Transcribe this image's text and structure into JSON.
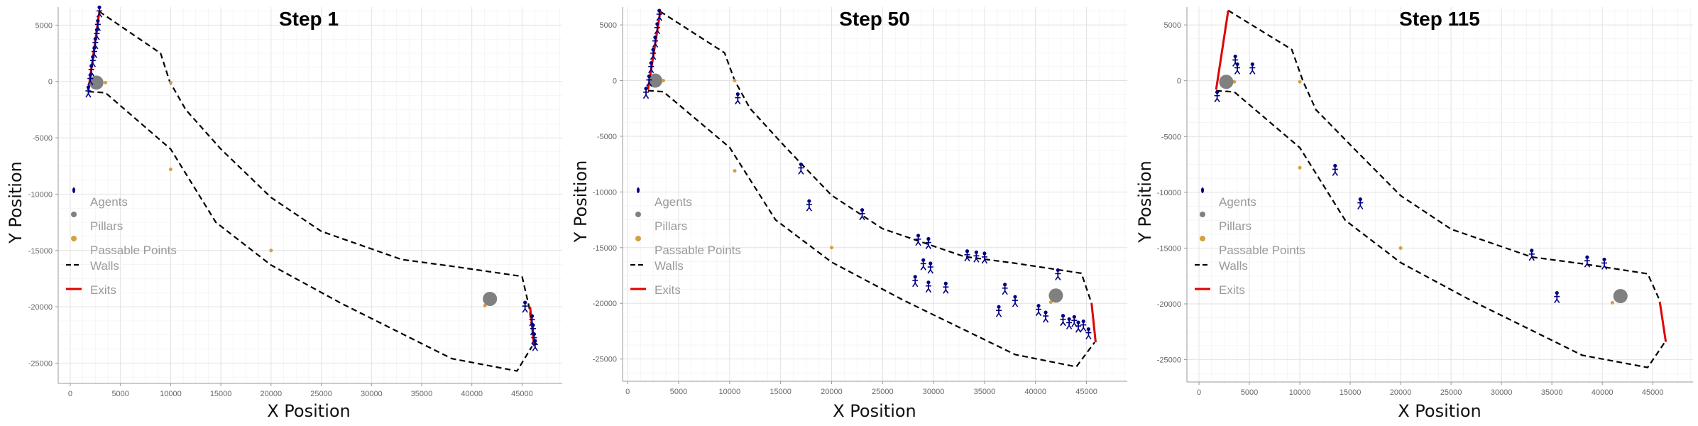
{
  "chart_data": [
    {
      "type": "scatter",
      "title": "Step 1",
      "xlabel": "X Position",
      "ylabel": "Y Position",
      "xlim": [
        -1200,
        49000
      ],
      "ylim": [
        -26800,
        6600
      ],
      "xticks": [
        0,
        5000,
        10000,
        15000,
        20000,
        25000,
        30000,
        35000,
        40000,
        45000
      ],
      "yticks": [
        5000,
        0,
        -5000,
        -10000,
        -15000,
        -20000,
        -25000
      ],
      "grid": true,
      "legend": {
        "placement": "left-middle",
        "entries": [
          "Agents",
          "Pillars",
          "Passable Points",
          "Walls",
          "Exits"
        ]
      },
      "colors": {
        "agents": "#000080",
        "pillars": "#808080",
        "passable": "#d4a040",
        "walls": "#000000",
        "exits": "#e00000"
      },
      "walls": [
        [
          [
            2900,
            6200
          ],
          [
            9000,
            2500
          ],
          [
            9900,
            0
          ],
          [
            11500,
            -2500
          ],
          [
            15000,
            -6000
          ],
          [
            20000,
            -10300
          ],
          [
            25000,
            -13300
          ],
          [
            33000,
            -15800
          ],
          [
            38000,
            -16400
          ],
          [
            45000,
            -17300
          ],
          [
            45700,
            -20000
          ],
          [
            46000,
            -22000
          ]
        ],
        [
          [
            1800,
            -900
          ],
          [
            3500,
            -1000
          ],
          [
            10000,
            -6000
          ],
          [
            14500,
            -12500
          ],
          [
            20000,
            -16300
          ],
          [
            27000,
            -19700
          ],
          [
            38000,
            -24600
          ],
          [
            44500,
            -25700
          ],
          [
            46000,
            -23500
          ]
        ]
      ],
      "exits": [
        [
          [
            1800,
            -800
          ],
          [
            2900,
            6200
          ]
        ],
        [
          [
            45800,
            -20000
          ],
          [
            46200,
            -23500
          ]
        ]
      ],
      "pillars": [
        [
          2600,
          -100
        ],
        [
          41800,
          -19300
        ]
      ],
      "passable_points": [
        [
          3500,
          -100
        ],
        [
          10000,
          -100
        ],
        [
          10000,
          -7800
        ],
        [
          20000,
          -15000
        ],
        [
          41300,
          -19900
        ]
      ],
      "agents": [
        [
          1800,
          -900
        ],
        [
          2000,
          200
        ],
        [
          2100,
          1000
        ],
        [
          2250,
          1800
        ],
        [
          2400,
          2600
        ],
        [
          2500,
          3400
        ],
        [
          2650,
          4200
        ],
        [
          2750,
          5000
        ],
        [
          2900,
          6200
        ],
        [
          45300,
          -20000
        ],
        [
          46000,
          -21200
        ],
        [
          46100,
          -22000
        ],
        [
          46200,
          -22800
        ],
        [
          46300,
          -23400
        ]
      ]
    },
    {
      "type": "scatter",
      "title": "Step 50",
      "xlabel": "X Position",
      "ylabel": "Y Position",
      "xlim": [
        -500,
        49000
      ],
      "ylim": [
        -27000,
        6600
      ],
      "xticks": [
        0,
        5000,
        10000,
        15000,
        20000,
        25000,
        30000,
        35000,
        40000,
        45000
      ],
      "yticks": [
        5000,
        0,
        -5000,
        -10000,
        -15000,
        -20000,
        -25000
      ],
      "grid": true,
      "legend": {
        "placement": "left-middle",
        "entries": [
          "Agents",
          "Pillars",
          "Passable Points",
          "Walls",
          "Exits"
        ]
      },
      "colors": {
        "agents": "#000080",
        "pillars": "#808080",
        "passable": "#d4a040",
        "walls": "#000000",
        "exits": "#e00000"
      },
      "walls": [
        [
          [
            3200,
            6200
          ],
          [
            9500,
            2500
          ],
          [
            10500,
            0
          ],
          [
            12000,
            -2500
          ],
          [
            15500,
            -6000
          ],
          [
            20000,
            -10300
          ],
          [
            25000,
            -13300
          ],
          [
            33000,
            -15800
          ],
          [
            38000,
            -16400
          ],
          [
            44500,
            -17300
          ],
          [
            45500,
            -20000
          ]
        ],
        [
          [
            2000,
            -900
          ],
          [
            3500,
            -1000
          ],
          [
            10000,
            -6000
          ],
          [
            14500,
            -12500
          ],
          [
            20000,
            -16300
          ],
          [
            27000,
            -19700
          ],
          [
            38000,
            -24600
          ],
          [
            44000,
            -25700
          ],
          [
            45800,
            -23500
          ]
        ]
      ],
      "exits": [
        [
          [
            2000,
            -800
          ],
          [
            3200,
            6200
          ]
        ],
        [
          [
            45500,
            -20000
          ],
          [
            45900,
            -23500
          ]
        ]
      ],
      "pillars": [
        [
          2700,
          0
        ],
        [
          42000,
          -19300
        ]
      ],
      "passable_points": [
        [
          3500,
          0
        ],
        [
          10500,
          0
        ],
        [
          10500,
          -8100
        ],
        [
          20000,
          -15000
        ],
        [
          41500,
          -19900
        ]
      ],
      "agents": [
        [
          1800,
          -1100
        ],
        [
          2100,
          0
        ],
        [
          2300,
          1200
        ],
        [
          2500,
          2400
        ],
        [
          2700,
          3500
        ],
        [
          2900,
          4700
        ],
        [
          3100,
          5900
        ],
        [
          10800,
          -1600
        ],
        [
          17000,
          -7900
        ],
        [
          17800,
          -11200
        ],
        [
          23000,
          -12000
        ],
        [
          28500,
          -14300
        ],
        [
          29500,
          -14600
        ],
        [
          29000,
          -16500
        ],
        [
          29700,
          -16800
        ],
        [
          28200,
          -18000
        ],
        [
          29500,
          -18500
        ],
        [
          31200,
          -18600
        ],
        [
          33300,
          -15700
        ],
        [
          34200,
          -15800
        ],
        [
          35000,
          -15900
        ],
        [
          36400,
          -20700
        ],
        [
          37000,
          -18700
        ],
        [
          38000,
          -19800
        ],
        [
          40300,
          -20600
        ],
        [
          41000,
          -21200
        ],
        [
          42200,
          -17400
        ],
        [
          42700,
          -21500
        ],
        [
          43300,
          -21800
        ],
        [
          43800,
          -21600
        ],
        [
          44200,
          -22100
        ],
        [
          44700,
          -22000
        ],
        [
          45200,
          -22700
        ]
      ]
    },
    {
      "type": "scatter",
      "title": "Step 115",
      "xlabel": "X Position",
      "ylabel": "Y Position",
      "xlim": [
        -1200,
        49000
      ],
      "ylim": [
        -27000,
        6600
      ],
      "xticks": [
        0,
        5000,
        10000,
        15000,
        20000,
        25000,
        30000,
        35000,
        40000,
        45000
      ],
      "yticks": [
        5000,
        0,
        -5000,
        -10000,
        -15000,
        -20000,
        -25000
      ],
      "grid": true,
      "legend": {
        "placement": "left-middle",
        "entries": [
          "Agents",
          "Pillars",
          "Passable Points",
          "Walls",
          "Exits"
        ]
      },
      "colors": {
        "agents": "#000080",
        "pillars": "#808080",
        "passable": "#d4a040",
        "walls": "#000000",
        "exits": "#e00000"
      },
      "walls": [
        [
          [
            2900,
            6300
          ],
          [
            9200,
            2800
          ],
          [
            10300,
            0
          ],
          [
            11600,
            -2600
          ],
          [
            15500,
            -6200
          ],
          [
            20000,
            -10300
          ],
          [
            25000,
            -13300
          ],
          [
            33000,
            -15800
          ],
          [
            38000,
            -16400
          ],
          [
            44500,
            -17300
          ],
          [
            45700,
            -19700
          ]
        ],
        [
          [
            1700,
            -900
          ],
          [
            3500,
            -1000
          ],
          [
            10000,
            -6000
          ],
          [
            14500,
            -12500
          ],
          [
            20000,
            -16300
          ],
          [
            27000,
            -19700
          ],
          [
            38000,
            -24600
          ],
          [
            44500,
            -25700
          ],
          [
            46300,
            -23300
          ]
        ]
      ],
      "exits": [
        [
          [
            1700,
            -800
          ],
          [
            2900,
            6300
          ]
        ],
        [
          [
            45700,
            -19800
          ],
          [
            46300,
            -23400
          ]
        ]
      ],
      "pillars": [
        [
          2700,
          -100
        ],
        [
          41800,
          -19300
        ]
      ],
      "passable_points": [
        [
          3500,
          -100
        ],
        [
          10000,
          -100
        ],
        [
          10000,
          -7800
        ],
        [
          20000,
          -15000
        ],
        [
          41000,
          -19900
        ]
      ],
      "agents": [
        [
          1800,
          -1400
        ],
        [
          3600,
          1800
        ],
        [
          3800,
          1100
        ],
        [
          5300,
          1100
        ],
        [
          13500,
          -8000
        ],
        [
          16000,
          -11000
        ],
        [
          33000,
          -15600
        ],
        [
          35500,
          -19400
        ],
        [
          38500,
          -16200
        ],
        [
          40200,
          -16400
        ]
      ]
    }
  ]
}
